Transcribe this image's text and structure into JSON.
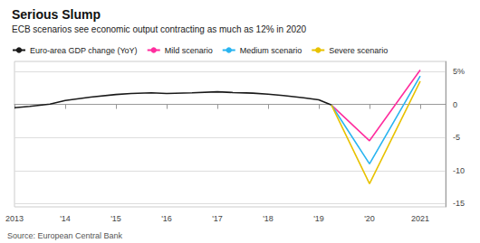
{
  "chart_data": {
    "type": "line",
    "title": "Serious Slump",
    "subtitle": "ECB scenarios see economic output contracting as much as 12% in 2020",
    "source": "Source: European Central Bank",
    "series": [
      {
        "name": "Euro-area GDP change (YoY)",
        "color": "#1a1a1a",
        "x": [
          2013,
          2013.3,
          2013.7,
          2014,
          2014.5,
          2015,
          2015.3,
          2015.7,
          2016,
          2016.5,
          2017,
          2017.3,
          2017.7,
          2018,
          2018.3,
          2018.7,
          2019,
          2019.25
        ],
        "values": [
          -0.5,
          -0.3,
          0.05,
          0.6,
          1.1,
          1.5,
          1.65,
          1.75,
          1.65,
          1.75,
          1.9,
          1.8,
          1.7,
          1.55,
          1.35,
          1.0,
          0.7,
          -0.1
        ]
      },
      {
        "name": "Mild scenario",
        "color": "#ff2d9e",
        "x": [
          2019.25,
          2020,
          2021
        ],
        "values": [
          -0.1,
          -5.5,
          5.2
        ]
      },
      {
        "name": "Medium scenario",
        "color": "#29b4f0",
        "x": [
          2019.25,
          2020,
          2021
        ],
        "values": [
          -0.1,
          -9.0,
          4.3
        ]
      },
      {
        "name": "Severe scenario",
        "color": "#e8c200",
        "x": [
          2019.25,
          2020,
          2021
        ],
        "values": [
          -0.1,
          -12.0,
          3.5
        ]
      }
    ],
    "xlim": [
      2013,
      2021.5
    ],
    "xticks": [
      2013,
      {
        "value": 2014,
        "label": "'14"
      },
      {
        "value": 2015,
        "label": "'15"
      },
      {
        "value": 2016,
        "label": "'16"
      },
      {
        "value": 2017,
        "label": "'17"
      },
      {
        "value": 2018,
        "label": "'18"
      },
      {
        "value": 2019,
        "label": "'19"
      },
      {
        "value": 2020,
        "label": "'20"
      },
      2021
    ],
    "ylim": [
      -15.5,
      6.5
    ],
    "yticks": [
      {
        "value": 5,
        "label": "5%"
      },
      0,
      -5,
      -10,
      -15
    ],
    "grid": true,
    "legend": "upper left"
  }
}
